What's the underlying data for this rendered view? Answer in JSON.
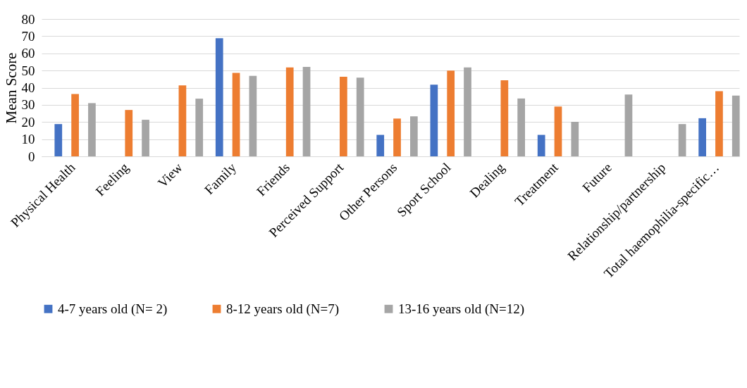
{
  "chart_data": {
    "type": "bar",
    "ylabel": "Mean Score",
    "categories": [
      "Physical Health",
      "Feeling",
      "View",
      "Family",
      "Friends",
      "Perceived Support",
      "Other Persons",
      "Sport School",
      "Dealing",
      "Treatment",
      "Future",
      "Relationship/partnership",
      "Total haemophilia-specific…"
    ],
    "series": [
      {
        "name": "4-7 years old (N= 2)",
        "color": "#4472c4",
        "values": [
          18.8,
          null,
          null,
          68.8,
          null,
          null,
          12.5,
          41.7,
          null,
          12.5,
          null,
          null,
          22.2
        ]
      },
      {
        "name": "8-12 years old (N=7)",
        "color": "#ed7d31",
        "values": [
          36.3,
          27,
          41.3,
          48.6,
          51.8,
          46.4,
          22,
          50,
          44.3,
          29,
          null,
          null,
          38
        ]
      },
      {
        "name": "13-16 years old (N=12)",
        "color": "#a5a5a5",
        "values": [
          31,
          21.3,
          33.6,
          46.9,
          52.1,
          45.8,
          23.3,
          51.8,
          33.7,
          20.1,
          36,
          18.8,
          35.4
        ]
      }
    ],
    "ylim": [
      0,
      80
    ],
    "yticks": [
      0,
      10,
      20,
      30,
      40,
      50,
      60,
      70,
      80
    ],
    "grid": "y",
    "legend": "bottom"
  }
}
